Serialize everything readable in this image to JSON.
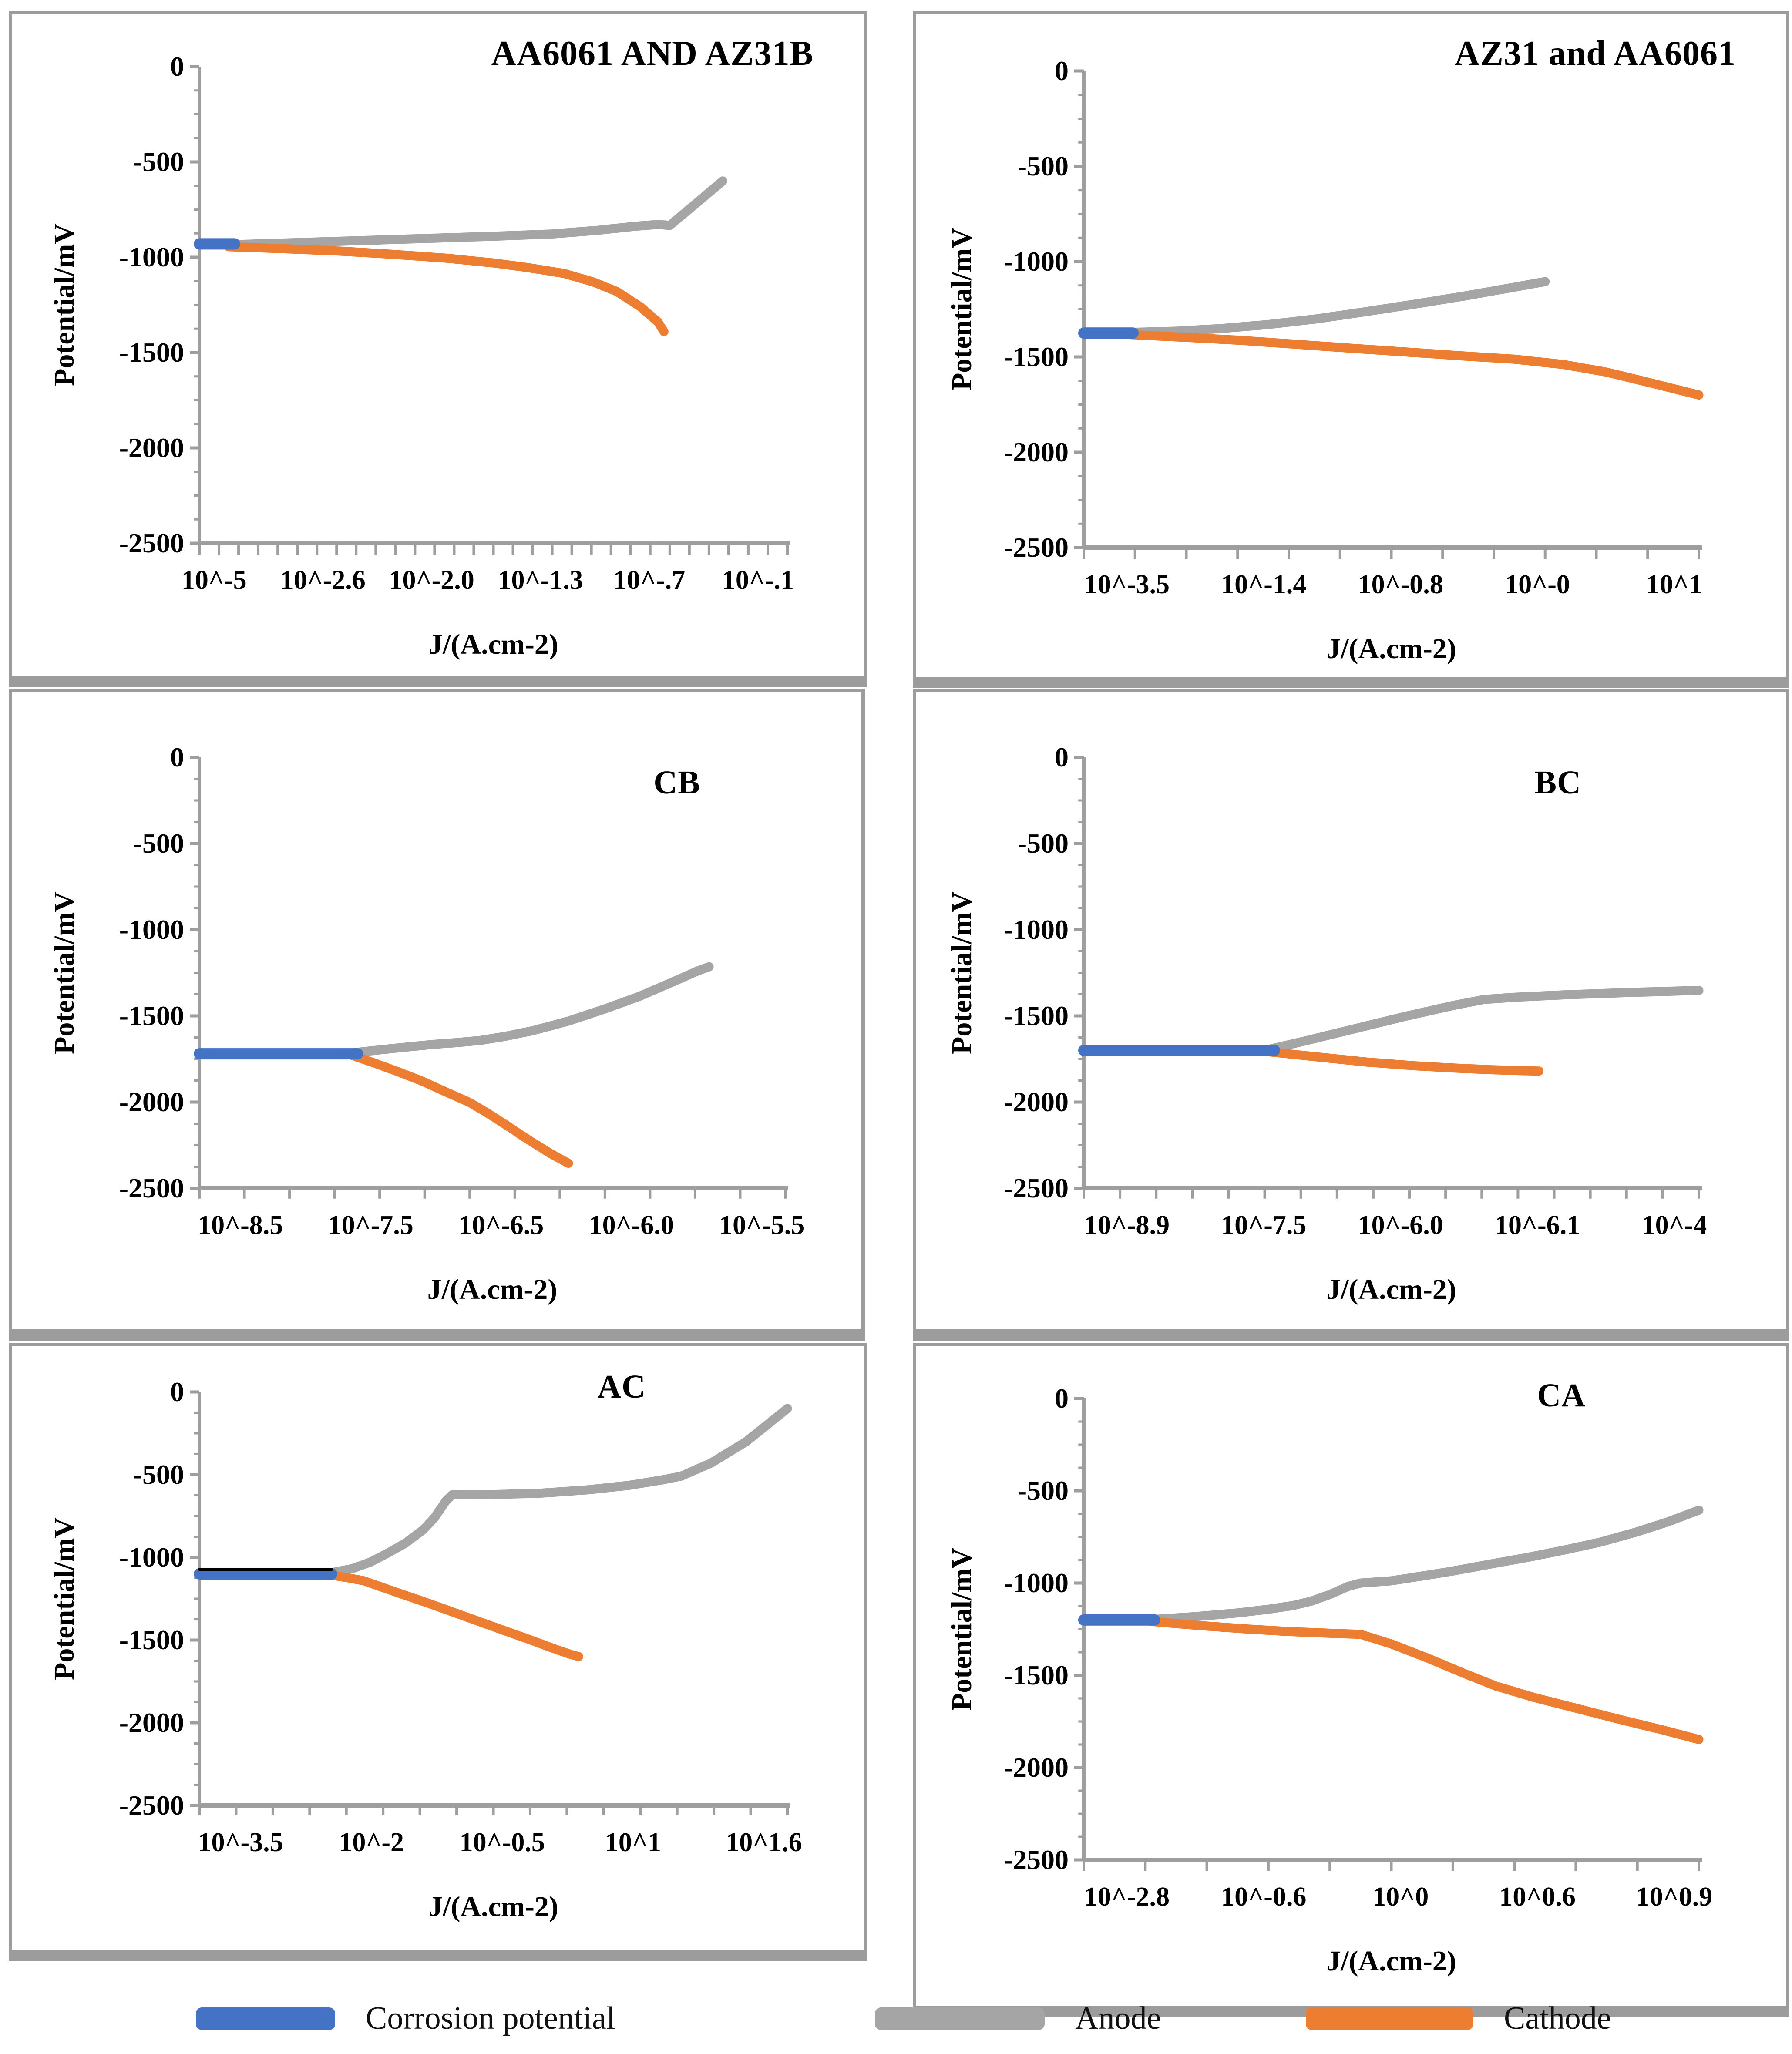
{
  "axis_titles": {
    "x": "J/(A.cm-2)",
    "y": "Potential/mV"
  },
  "y_tick_labels": [
    "0",
    "-500",
    "-1000",
    "-1500",
    "-2000",
    "-2500"
  ],
  "colors": {
    "corrosion": "#4472C4",
    "anode": "#A5A5A5",
    "cathode": "#ED7D31",
    "axis": "#9e9e9e",
    "panel_border": "#9c9c9c",
    "corrosion_dark_top": "#000000"
  },
  "legend": {
    "items": [
      {
        "label": "Corrosion potential",
        "color_key": "corrosion"
      },
      {
        "label": "Anode",
        "color_key": "anode"
      },
      {
        "label": "Cathode",
        "color_key": "cathode"
      }
    ]
  },
  "chart_data": [
    {
      "type": "line",
      "title": "AA6061 AND AZ31B",
      "xlabel": "J/(A.cm-2)",
      "ylabel": "Potential/mV",
      "ylim": [
        0,
        -2500
      ],
      "x_tick_labels": [
        "10^-5",
        "10^-2.6",
        "10^-2.0",
        "10^-1.3",
        "10^-.7",
        "10^-.1"
      ],
      "x_minor_tick_count": 30,
      "series": {
        "corrosion": [
          [
            0,
            -930
          ],
          [
            0.06,
            -930
          ]
        ],
        "anode": [
          [
            0.05,
            -935
          ],
          [
            0.15,
            -925
          ],
          [
            0.28,
            -912
          ],
          [
            0.4,
            -900
          ],
          [
            0.5,
            -890
          ],
          [
            0.6,
            -878
          ],
          [
            0.68,
            -858
          ],
          [
            0.74,
            -838
          ],
          [
            0.78,
            -828
          ],
          [
            0.8,
            -833
          ],
          [
            0.84,
            -730
          ],
          [
            0.89,
            -600
          ]
        ],
        "cathode": [
          [
            0.05,
            -945
          ],
          [
            0.14,
            -955
          ],
          [
            0.24,
            -968
          ],
          [
            0.33,
            -985
          ],
          [
            0.42,
            -1005
          ],
          [
            0.5,
            -1030
          ],
          [
            0.56,
            -1055
          ],
          [
            0.62,
            -1085
          ],
          [
            0.67,
            -1130
          ],
          [
            0.71,
            -1180
          ],
          [
            0.75,
            -1260
          ],
          [
            0.78,
            -1340
          ],
          [
            0.79,
            -1390
          ]
        ]
      }
    },
    {
      "type": "line",
      "title": "AZ31 and AA6061",
      "xlabel": "J/(A.cm-2)",
      "ylabel": "Potential/mV",
      "ylim": [
        0,
        -2500
      ],
      "x_tick_labels": [
        "10^-3.5",
        "10^-1.4",
        "10^-0.8",
        "10^-0",
        "10^1"
      ],
      "x_minor_tick_count": 12,
      "series": {
        "corrosion": [
          [
            0,
            -1375
          ],
          [
            0.08,
            -1375
          ]
        ],
        "anode": [
          [
            0.07,
            -1372
          ],
          [
            0.15,
            -1365
          ],
          [
            0.22,
            -1352
          ],
          [
            0.3,
            -1330
          ],
          [
            0.38,
            -1300
          ],
          [
            0.46,
            -1262
          ],
          [
            0.54,
            -1222
          ],
          [
            0.62,
            -1180
          ],
          [
            0.69,
            -1140
          ],
          [
            0.75,
            -1105
          ]
        ],
        "cathode": [
          [
            0.07,
            -1382
          ],
          [
            0.15,
            -1395
          ],
          [
            0.25,
            -1412
          ],
          [
            0.35,
            -1435
          ],
          [
            0.45,
            -1458
          ],
          [
            0.55,
            -1480
          ],
          [
            0.63,
            -1498
          ],
          [
            0.7,
            -1512
          ],
          [
            0.78,
            -1540
          ],
          [
            0.85,
            -1580
          ],
          [
            0.92,
            -1635
          ],
          [
            1.0,
            -1700
          ]
        ]
      }
    },
    {
      "type": "line",
      "title": "CB",
      "xlabel": "J/(A.cm-2)",
      "ylabel": "Potential/mV",
      "ylim": [
        0,
        -2500
      ],
      "x_tick_labels": [
        "10^-8.5",
        "10^-7.5",
        "10^-6.5",
        "10^-6.0",
        "10^-5.5"
      ],
      "x_minor_tick_count": 13,
      "series": {
        "corrosion": [
          [
            0,
            -1720
          ],
          [
            0.27,
            -1720
          ]
        ],
        "anode": [
          [
            0.26,
            -1715
          ],
          [
            0.3,
            -1700
          ],
          [
            0.35,
            -1682
          ],
          [
            0.4,
            -1665
          ],
          [
            0.44,
            -1655
          ],
          [
            0.48,
            -1642
          ],
          [
            0.52,
            -1620
          ],
          [
            0.57,
            -1585
          ],
          [
            0.63,
            -1530
          ],
          [
            0.69,
            -1462
          ],
          [
            0.75,
            -1388
          ],
          [
            0.8,
            -1315
          ],
          [
            0.85,
            -1240
          ],
          [
            0.87,
            -1215
          ]
        ],
        "cathode": [
          [
            0.26,
            -1728
          ],
          [
            0.3,
            -1775
          ],
          [
            0.34,
            -1825
          ],
          [
            0.38,
            -1878
          ],
          [
            0.42,
            -1940
          ],
          [
            0.46,
            -2000
          ],
          [
            0.49,
            -2060
          ],
          [
            0.52,
            -2125
          ],
          [
            0.56,
            -2215
          ],
          [
            0.6,
            -2300
          ],
          [
            0.63,
            -2355
          ]
        ]
      }
    },
    {
      "type": "line",
      "title": "BC",
      "xlabel": "J/(A.cm-2)",
      "ylabel": "Potential/mV",
      "ylim": [
        0,
        -2500
      ],
      "x_tick_labels": [
        "10^-8.9",
        "10^-7.5",
        "10^-6.0",
        "10^-6.1",
        "10^-4"
      ],
      "x_minor_tick_count": 17,
      "series": {
        "corrosion": [
          [
            0,
            -1700
          ],
          [
            0.31,
            -1700
          ]
        ],
        "anode": [
          [
            0.3,
            -1695
          ],
          [
            0.36,
            -1645
          ],
          [
            0.44,
            -1575
          ],
          [
            0.52,
            -1505
          ],
          [
            0.6,
            -1440
          ],
          [
            0.65,
            -1405
          ],
          [
            0.7,
            -1392
          ],
          [
            0.78,
            -1378
          ],
          [
            0.88,
            -1365
          ],
          [
            1.0,
            -1352
          ]
        ],
        "cathode": [
          [
            0.3,
            -1708
          ],
          [
            0.38,
            -1738
          ],
          [
            0.46,
            -1768
          ],
          [
            0.54,
            -1790
          ],
          [
            0.6,
            -1802
          ],
          [
            0.66,
            -1812
          ],
          [
            0.71,
            -1818
          ],
          [
            0.74,
            -1820
          ]
        ]
      }
    },
    {
      "type": "line",
      "title": "AC",
      "xlabel": "J/(A.cm-2)",
      "ylabel": "Potential/mV",
      "ylim": [
        0,
        -2500
      ],
      "x_tick_labels": [
        "10^-3.5",
        "10^-2",
        "10^-0.5",
        "10^1",
        "10^1.6"
      ],
      "x_minor_tick_count": 16,
      "corrosion_dark_top": true,
      "series": {
        "corrosion": [
          [
            0,
            -1100
          ],
          [
            0.225,
            -1100
          ]
        ],
        "anode": [
          [
            0.22,
            -1096
          ],
          [
            0.26,
            -1068
          ],
          [
            0.29,
            -1030
          ],
          [
            0.32,
            -975
          ],
          [
            0.35,
            -915
          ],
          [
            0.38,
            -835
          ],
          [
            0.4,
            -760
          ],
          [
            0.42,
            -655
          ],
          [
            0.43,
            -622
          ],
          [
            0.5,
            -620
          ],
          [
            0.58,
            -612
          ],
          [
            0.66,
            -592
          ],
          [
            0.73,
            -565
          ],
          [
            0.79,
            -530
          ],
          [
            0.82,
            -508
          ],
          [
            0.87,
            -430
          ],
          [
            0.93,
            -300
          ],
          [
            1.0,
            -100
          ]
        ],
        "cathode": [
          [
            0.22,
            -1105
          ],
          [
            0.25,
            -1122
          ],
          [
            0.28,
            -1142
          ],
          [
            0.33,
            -1205
          ],
          [
            0.39,
            -1278
          ],
          [
            0.45,
            -1355
          ],
          [
            0.51,
            -1432
          ],
          [
            0.56,
            -1495
          ],
          [
            0.6,
            -1548
          ],
          [
            0.63,
            -1585
          ],
          [
            0.645,
            -1600
          ]
        ]
      }
    },
    {
      "type": "line",
      "title": "CA",
      "xlabel": "J/(A.cm-2)",
      "ylabel": "Potential/mV",
      "ylim": [
        0,
        -2500
      ],
      "x_tick_labels": [
        "10^-2.8",
        "10^-0.6",
        "10^0",
        "10^0.6",
        "10^0.9"
      ],
      "x_minor_tick_count": 10,
      "series": {
        "corrosion": [
          [
            0,
            -1200
          ],
          [
            0.115,
            -1200
          ]
        ],
        "anode": [
          [
            0.11,
            -1198
          ],
          [
            0.18,
            -1182
          ],
          [
            0.25,
            -1162
          ],
          [
            0.3,
            -1142
          ],
          [
            0.34,
            -1122
          ],
          [
            0.37,
            -1098
          ],
          [
            0.4,
            -1062
          ],
          [
            0.43,
            -1018
          ],
          [
            0.45,
            -1000
          ],
          [
            0.5,
            -988
          ],
          [
            0.55,
            -962
          ],
          [
            0.6,
            -935
          ],
          [
            0.66,
            -898
          ],
          [
            0.72,
            -862
          ],
          [
            0.78,
            -822
          ],
          [
            0.84,
            -778
          ],
          [
            0.9,
            -722
          ],
          [
            0.95,
            -668
          ],
          [
            1.0,
            -605
          ]
        ],
        "cathode": [
          [
            0.11,
            -1208
          ],
          [
            0.18,
            -1228
          ],
          [
            0.26,
            -1248
          ],
          [
            0.33,
            -1262
          ],
          [
            0.4,
            -1272
          ],
          [
            0.45,
            -1278
          ],
          [
            0.5,
            -1330
          ],
          [
            0.56,
            -1408
          ],
          [
            0.62,
            -1492
          ],
          [
            0.67,
            -1558
          ],
          [
            0.73,
            -1618
          ],
          [
            0.8,
            -1678
          ],
          [
            0.87,
            -1738
          ],
          [
            0.94,
            -1795
          ],
          [
            1.0,
            -1848
          ]
        ]
      }
    }
  ]
}
